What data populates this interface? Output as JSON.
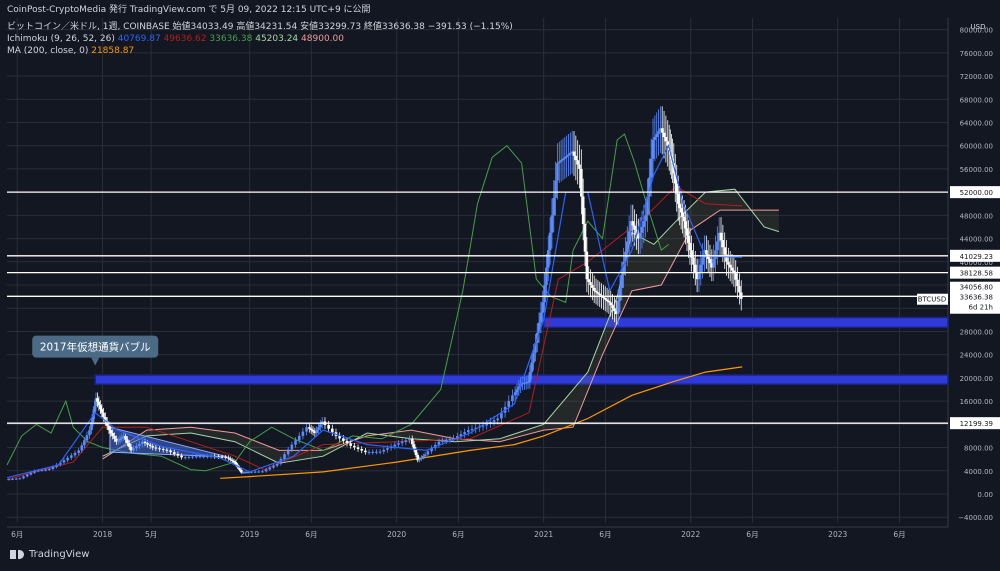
{
  "header": {
    "attribution": "CoinPost-CryptoMedia 発行 TradingView.com で 5月 09, 2022 12:15 UTC+9 に公開",
    "symbol_line": "ビットコイン／米ドル, 1週, COINBASE  始値34033.49  高値34231.54  安値33299.73  終値33636.38  −391.53 (−1.15%)",
    "ichimoku_label": "Ichimoku (9, 26, 52, 26)",
    "ichimoku_values": [
      "40769.87",
      "49636.62",
      "33636.38",
      "45203.24",
      "48900.00"
    ],
    "ma_label": "MA (200, close, 0)",
    "ma_value": "21858.87"
  },
  "colors": {
    "background": "#131722",
    "grid": "#2a2e39",
    "candle": "#ffffff",
    "candle_up": "#5b8cff",
    "tenkan": "#2962ff",
    "kijun": "#b71c1c",
    "chikou": "#43a047",
    "span_a": "#a5d6a7",
    "span_b": "#ef9a9a",
    "ma": "#ff9800",
    "zone": "#2e3bd9",
    "zone_border": "#1a237e",
    "hline": "#ffffff"
  },
  "annotation": {
    "text": "2017年仮想通貨バブル",
    "triangle_pattern": true
  },
  "price_tag": {
    "symbol": "BTCUSD",
    "open": "34056.80",
    "close": "33636.38",
    "countdown": "6d 21h"
  },
  "footer": {
    "brand": "TradingView"
  },
  "chart_data": {
    "type": "line",
    "title": "ビットコイン／米ドル, 1週, COINBASE",
    "currency": "USD",
    "ylim": [
      -5000,
      82000
    ],
    "y_ticks": [
      -4000,
      0,
      4000,
      8000,
      12000,
      16000,
      20000,
      24000,
      28000,
      32000,
      36000,
      40000,
      44000,
      48000,
      52000,
      56000,
      60000,
      64000,
      68000,
      72000,
      76000,
      80000
    ],
    "y_tick_labels": [
      "−4000.00",
      "0.00",
      "4000.00",
      "8000.00",
      "12000.00",
      "16000.00",
      "20000.00",
      "24000.00",
      "28000.00",
      "32000.00",
      "36000.00",
      "40000.00",
      "44000.00",
      "48000.00",
      "52000.00",
      "56000.00",
      "60000.00",
      "64000.00",
      "68000.00",
      "72000.00",
      "76000.00",
      "80000.00"
    ],
    "x_ticks": [
      {
        "t": 2017.42,
        "label": "6月"
      },
      {
        "t": 2018.0,
        "label": "2018"
      },
      {
        "t": 2018.33,
        "label": "5月"
      },
      {
        "t": 2019.0,
        "label": "2019"
      },
      {
        "t": 2019.42,
        "label": "6月"
      },
      {
        "t": 2020.0,
        "label": "2020"
      },
      {
        "t": 2020.42,
        "label": "6月"
      },
      {
        "t": 2021.0,
        "label": "2021"
      },
      {
        "t": 2021.42,
        "label": "6月"
      },
      {
        "t": 2022.0,
        "label": "2022"
      },
      {
        "t": 2022.42,
        "label": "6月"
      },
      {
        "t": 2023.0,
        "label": "2023"
      },
      {
        "t": 2023.42,
        "label": "6月"
      }
    ],
    "xlim": [
      2017.35,
      2023.75
    ],
    "horizontal_levels": [
      {
        "value": 52000,
        "label": "52000.00"
      },
      {
        "value": 41029.23,
        "label": "41029.23"
      },
      {
        "value": 38128.58,
        "label": "38128.58"
      },
      {
        "value": 34056.8,
        "label": ""
      },
      {
        "value": 12199.39,
        "label": "12199.39"
      }
    ],
    "zones": [
      {
        "from": 2017.95,
        "low": 18900,
        "high": 20500
      },
      {
        "from": 2021.0,
        "low": 28700,
        "high": 30400
      }
    ],
    "price": {
      "name": "BTCUSD",
      "x": [
        2017.35,
        2017.45,
        2017.55,
        2017.65,
        2017.75,
        2017.85,
        2017.92,
        2017.96,
        2018.0,
        2018.05,
        2018.1,
        2018.15,
        2018.2,
        2018.28,
        2018.35,
        2018.45,
        2018.55,
        2018.65,
        2018.75,
        2018.85,
        2018.9,
        2018.95,
        2019.0,
        2019.1,
        2019.2,
        2019.3,
        2019.4,
        2019.45,
        2019.5,
        2019.6,
        2019.7,
        2019.8,
        2019.9,
        2020.0,
        2020.1,
        2020.15,
        2020.2,
        2020.3,
        2020.4,
        2020.5,
        2020.6,
        2020.7,
        2020.8,
        2020.85,
        2020.9,
        2020.95,
        2021.0,
        2021.05,
        2021.1,
        2021.15,
        2021.2,
        2021.25,
        2021.3,
        2021.35,
        2021.4,
        2021.45,
        2021.5,
        2021.55,
        2021.6,
        2021.65,
        2021.7,
        2021.75,
        2021.8,
        2021.85,
        2021.88,
        2021.92,
        2021.96,
        2022.0,
        2022.05,
        2022.1,
        2022.15,
        2022.2,
        2022.25,
        2022.3,
        2022.35
      ],
      "values": [
        2500,
        2700,
        4000,
        4300,
        5800,
        7500,
        11000,
        16500,
        14000,
        11000,
        9000,
        10000,
        7500,
        9000,
        8000,
        7500,
        6300,
        6500,
        6500,
        6300,
        5500,
        3700,
        3800,
        3900,
        5200,
        8500,
        11500,
        10500,
        12500,
        10000,
        8300,
        7200,
        7300,
        8500,
        9500,
        5800,
        6800,
        9000,
        9600,
        11000,
        11800,
        13000,
        17000,
        19000,
        19300,
        26000,
        33000,
        45000,
        57000,
        58000,
        59000,
        56000,
        37000,
        35000,
        34000,
        33000,
        31000,
        40000,
        47000,
        44000,
        48000,
        61000,
        63000,
        60000,
        57000,
        50000,
        47000,
        42000,
        37000,
        42000,
        39000,
        45000,
        40000,
        38000,
        33636
      ]
    },
    "ma200": {
      "name": "MA 200",
      "x": [
        2018.8,
        2019.0,
        2019.5,
        2020.0,
        2020.5,
        2020.8,
        2021.0,
        2021.3,
        2021.6,
        2021.9,
        2022.1,
        2022.35
      ],
      "values": [
        2700,
        3000,
        3800,
        5500,
        7500,
        8500,
        10000,
        13000,
        17000,
        19500,
        21000,
        21900
      ]
    },
    "tenkan": {
      "name": "Tenkan",
      "x": [
        2017.35,
        2017.7,
        2017.95,
        2018.1,
        2018.4,
        2018.8,
        2019.0,
        2019.3,
        2019.5,
        2019.8,
        2020.0,
        2020.2,
        2020.5,
        2020.8,
        2021.0,
        2021.15,
        2021.3,
        2021.45,
        2021.6,
        2021.75,
        2021.85,
        2021.95,
        2022.1,
        2022.35
      ],
      "values": [
        2800,
        5000,
        14000,
        11000,
        8200,
        6200,
        3800,
        6500,
        11000,
        8500,
        8000,
        7500,
        10500,
        15500,
        30000,
        52000,
        52000,
        35000,
        42000,
        55000,
        60000,
        50000,
        41000,
        40770
      ]
    },
    "kijun": {
      "name": "Kijun",
      "x": [
        2017.35,
        2017.8,
        2018.0,
        2018.3,
        2018.9,
        2019.1,
        2019.5,
        2020.0,
        2020.5,
        2020.9,
        2021.1,
        2021.3,
        2021.5,
        2021.7,
        2021.9,
        2022.1,
        2022.35
      ],
      "values": [
        2500,
        5500,
        11500,
        11500,
        6500,
        4200,
        8500,
        9000,
        9500,
        14000,
        37000,
        40000,
        44000,
        48000,
        53000,
        50000,
        49637
      ]
    },
    "chikou": {
      "name": "Chikou",
      "x": [
        2017.35,
        2017.45,
        2017.55,
        2017.65,
        2017.75,
        2017.8,
        2017.9,
        2018.0,
        2018.2,
        2018.4,
        2018.6,
        2018.7,
        2018.9,
        2019.0,
        2019.15,
        2019.3,
        2019.5,
        2019.7,
        2019.9,
        2020.1,
        2020.3,
        2020.45,
        2020.55,
        2020.65,
        2020.75,
        2020.85,
        2020.95,
        2021.05,
        2021.15,
        2021.2,
        2021.3,
        2021.4,
        2021.5,
        2021.55,
        2021.62,
        2021.7,
        2021.8,
        2021.85
      ],
      "values": [
        5000,
        10000,
        12000,
        10500,
        16000,
        11500,
        9000,
        8000,
        7000,
        6500,
        4200,
        4000,
        5500,
        9000,
        11500,
        9500,
        7500,
        10000,
        9500,
        12000,
        18000,
        35000,
        50000,
        58000,
        60000,
        57000,
        37000,
        34000,
        33000,
        42000,
        47000,
        44000,
        61000,
        62000,
        57000,
        50000,
        42000,
        43000
      ]
    },
    "span_a": {
      "name": "Senkou Span A",
      "x": [
        2018.0,
        2018.3,
        2018.6,
        2018.9,
        2019.2,
        2019.5,
        2019.8,
        2020.1,
        2020.4,
        2020.7,
        2021.0,
        2021.3,
        2021.5,
        2021.6,
        2021.75,
        2021.9,
        2022.1,
        2022.3,
        2022.5,
        2022.6
      ],
      "values": [
        6500,
        10000,
        10500,
        9000,
        5300,
        6500,
        10500,
        9500,
        9000,
        9500,
        12000,
        21000,
        34000,
        45000,
        43000,
        47000,
        52000,
        52500,
        46000,
        45203
      ]
    },
    "span_b": {
      "name": "Senkou Span B",
      "x": [
        2018.0,
        2018.3,
        2018.6,
        2018.9,
        2019.2,
        2019.5,
        2019.8,
        2020.1,
        2020.4,
        2020.7,
        2021.0,
        2021.2,
        2021.4,
        2021.6,
        2021.8,
        2022.0,
        2022.2,
        2022.4,
        2022.6
      ],
      "values": [
        6000,
        11000,
        11500,
        10500,
        7500,
        7500,
        10000,
        11000,
        9500,
        9000,
        11000,
        11500,
        24000,
        35000,
        36000,
        45500,
        48900,
        48900,
        48900
      ]
    }
  }
}
